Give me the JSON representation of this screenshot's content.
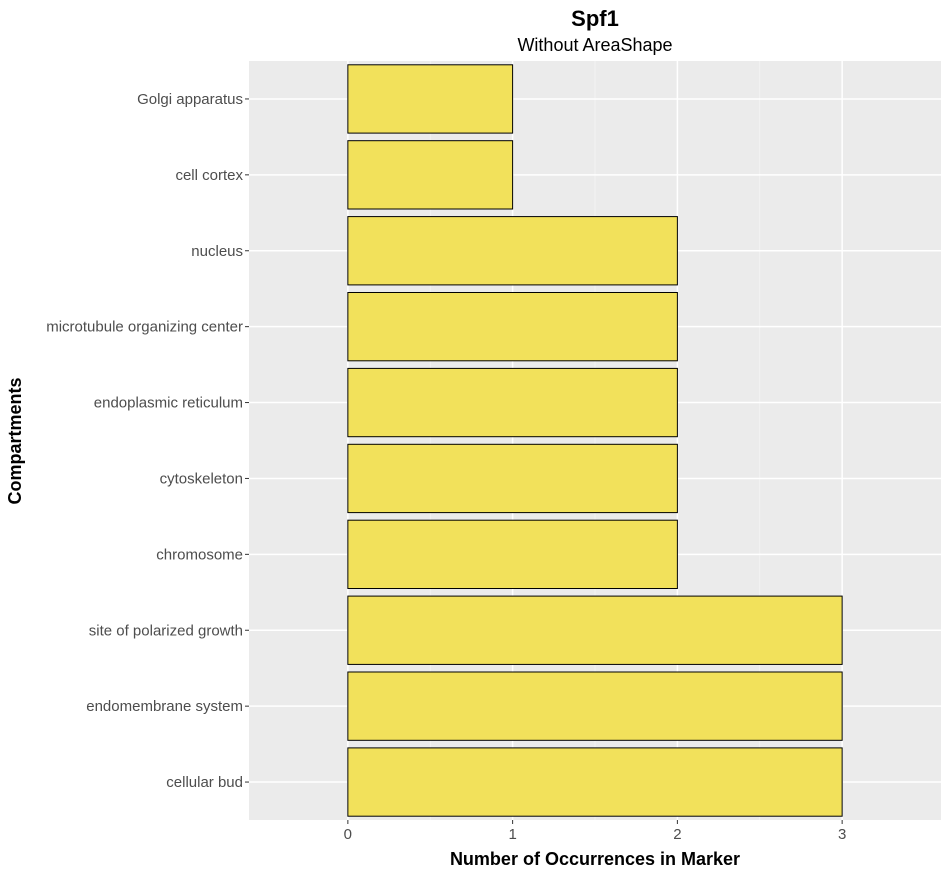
{
  "chart_data": {
    "type": "bar",
    "orientation": "horizontal",
    "title": "Spf1",
    "subtitle": "Without AreaShape",
    "xlabel": "Number of Occurrences in Marker",
    "ylabel": "Compartments",
    "categories": [
      "Golgi apparatus",
      "cell cortex",
      "nucleus",
      "microtubule organizing center",
      "endoplasmic reticulum",
      "cytoskeleton",
      "chromosome",
      "site of polarized growth",
      "endomembrane system",
      "cellular bud"
    ],
    "values": [
      1,
      1,
      2,
      2,
      2,
      2,
      2,
      3,
      3,
      3
    ],
    "xlim": [
      -0.6,
      3.6
    ],
    "xticks": [
      0,
      1,
      2,
      3
    ],
    "grid": true,
    "colors": {
      "bar_fill": "#f2e15b",
      "bar_stroke": "#000000",
      "panel_bg": "#ebebeb",
      "grid_major": "#ffffff",
      "grid_minor": "#f5f5f5"
    }
  }
}
